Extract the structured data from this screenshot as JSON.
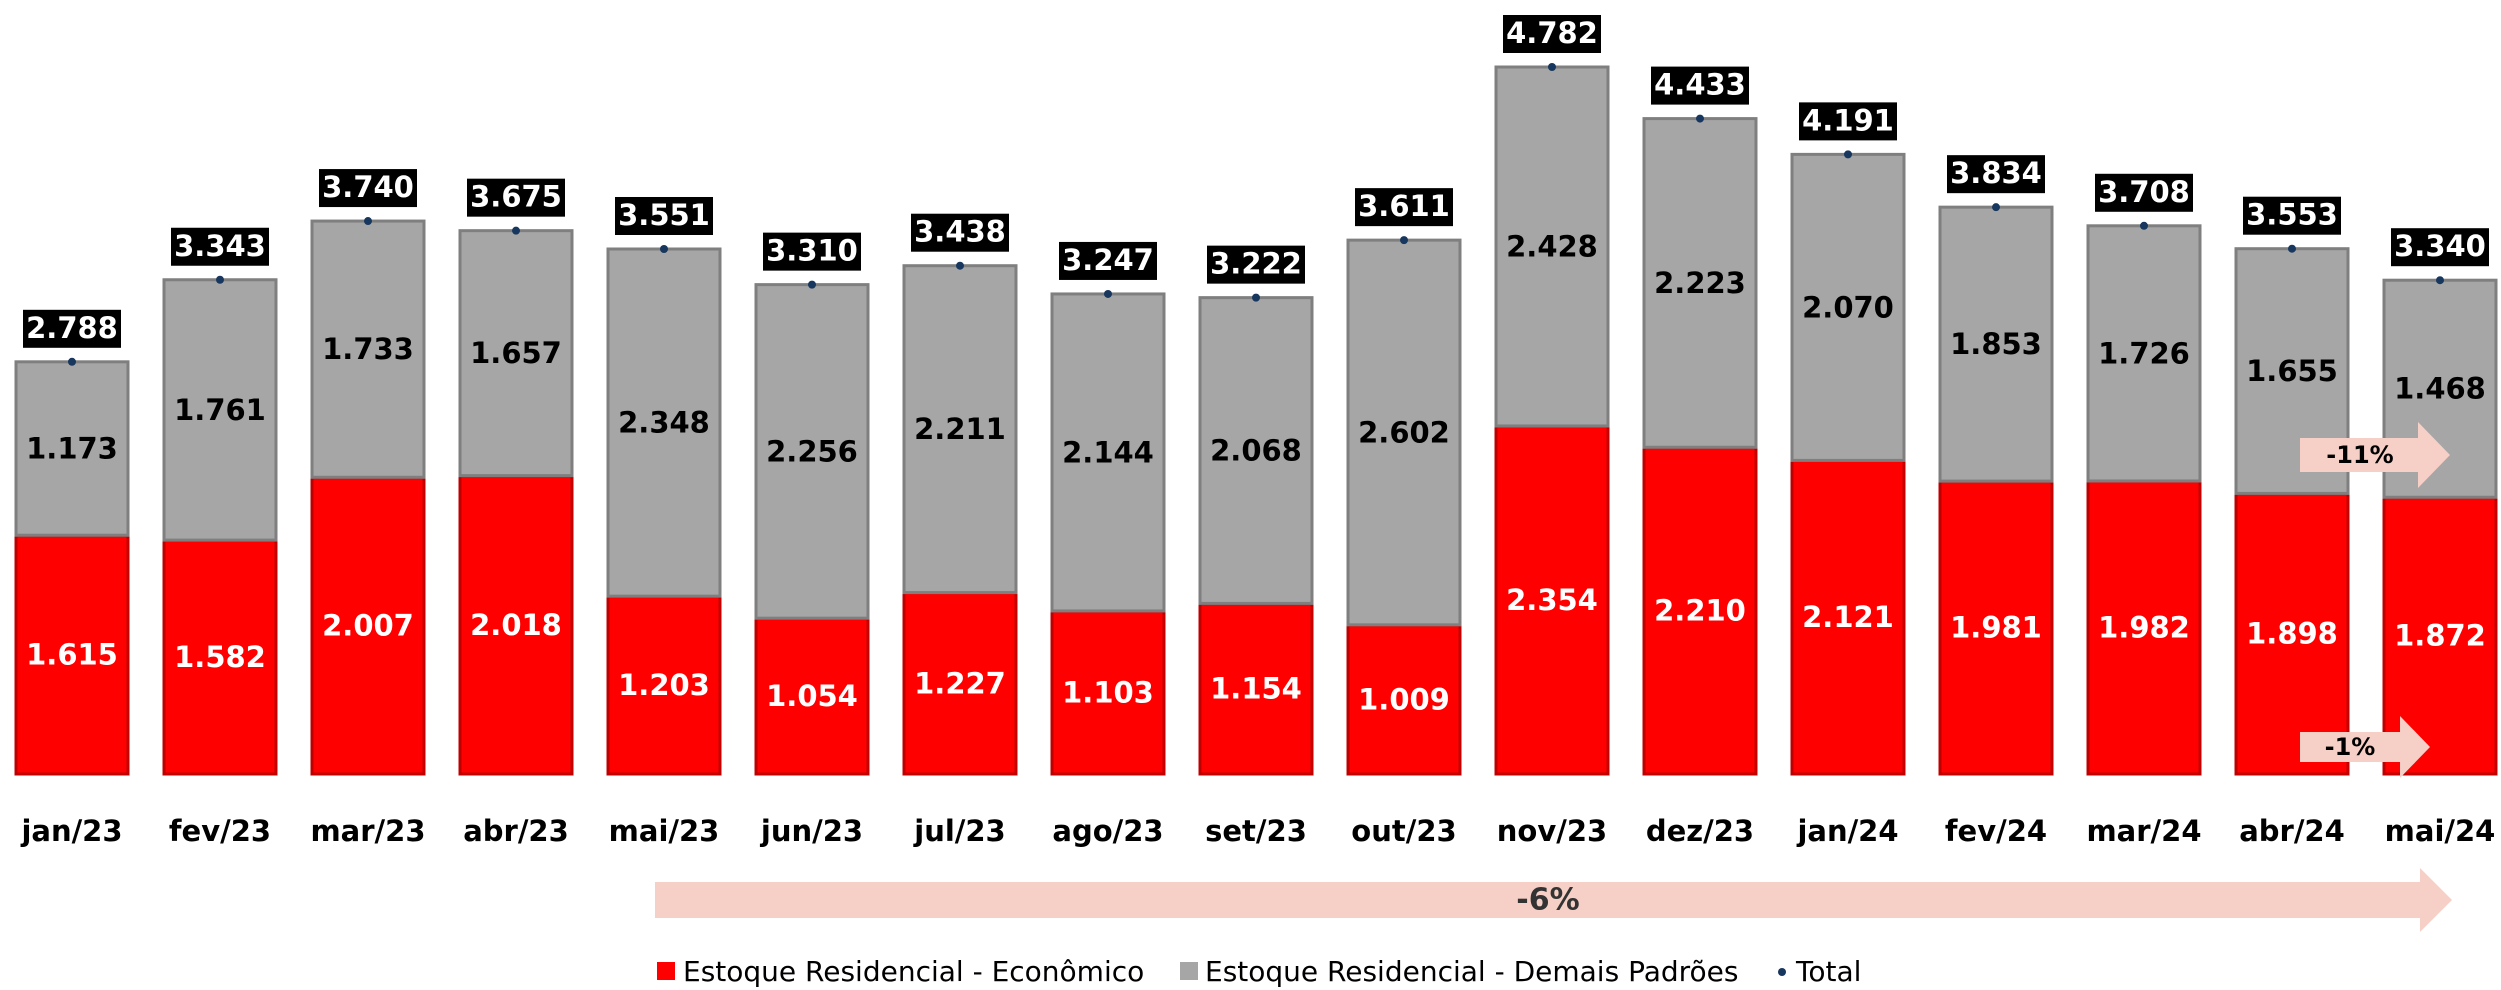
{
  "chart_data": {
    "type": "stacked_bar",
    "categories": [
      "jan/23",
      "fev/23",
      "mar/23",
      "abr/23",
      "mai/23",
      "jun/23",
      "jul/23",
      "ago/23",
      "set/23",
      "out/23",
      "nov/23",
      "dez/23",
      "jan/24",
      "fev/24",
      "mar/24",
      "abr/24",
      "mai/24"
    ],
    "series": [
      {
        "name": "Estoque Residencial - Econômico",
        "color": "#ff0000",
        "values": [
          1615,
          1582,
          2007,
          2018,
          1203,
          1054,
          1227,
          1103,
          1154,
          1009,
          2354,
          2210,
          2121,
          1981,
          1982,
          1898,
          1872
        ],
        "value_labels": [
          "1.615",
          "1.582",
          "2.007",
          "2.018",
          "1.203",
          "1.054",
          "1.227",
          "1.103",
          "1.154",
          "1.009",
          "2.354",
          "2.210",
          "2.121",
          "1.981",
          "1.982",
          "1.898",
          "1.872"
        ]
      },
      {
        "name": "Estoque Residencial - Demais Padrões",
        "color": "#a6a6a6",
        "values": [
          1173,
          1761,
          1733,
          1657,
          2348,
          2256,
          2211,
          2144,
          2068,
          2602,
          2428,
          2223,
          2070,
          1853,
          1726,
          1655,
          1468
        ],
        "value_labels": [
          "1.173",
          "1.761",
          "1.733",
          "1.657",
          "2.348",
          "2.256",
          "2.211",
          "2.144",
          "2.068",
          "2.602",
          "2.428",
          "2.223",
          "2.070",
          "1.853",
          "1.726",
          "1.655",
          "1.468"
        ]
      }
    ],
    "totals": {
      "name": "Total",
      "color": "#17375e",
      "values": [
        2788,
        3343,
        3740,
        3675,
        3551,
        3310,
        3438,
        3247,
        3222,
        3611,
        4782,
        4433,
        4191,
        3834,
        3708,
        3553,
        3340
      ],
      "value_labels": [
        "2.788",
        "3.343",
        "3.740",
        "3.675",
        "3.551",
        "3.310",
        "3.438",
        "3.247",
        "3.222",
        "3.611",
        "4.782",
        "4.433",
        "4.191",
        "3.834",
        "3.708",
        "3.553",
        "3.340"
      ]
    },
    "annotations": [
      {
        "text": "-11%"
      },
      {
        "text": "-1%"
      },
      {
        "text": "-6%"
      }
    ]
  }
}
